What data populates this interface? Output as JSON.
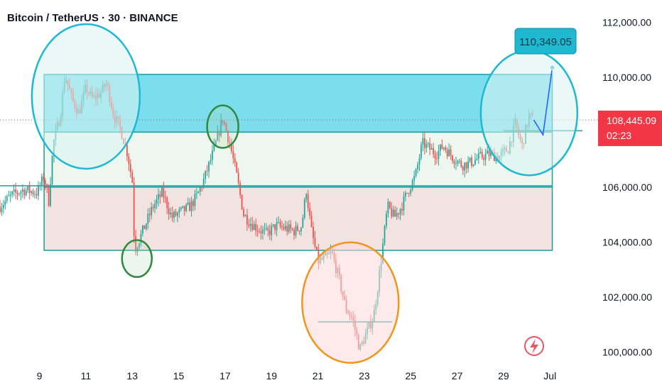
{
  "header": {
    "title": "Bitcoin / TetherUS · 30 · BINANCE"
  },
  "colors": {
    "up": "#26a69a",
    "down": "#ef5350",
    "resistance_zone": "#4fd3e8",
    "range_zone": "#eef7ef",
    "support_zone": "#f3e3e0",
    "circle_cyan": "#1fb8d0",
    "circle_green": "#2e8b3e",
    "circle_orange": "#f0961e",
    "projection": "#2962ff",
    "price_badge": "#f23645",
    "target_badge": "#1fb8d0"
  },
  "chart_data": {
    "type": "candlestick",
    "title": "Bitcoin / TetherUS · 30 · BINANCE",
    "x_tick_labels": [
      "9",
      "11",
      "13",
      "15",
      "17",
      "19",
      "21",
      "23",
      "25",
      "27",
      "29",
      "Jul"
    ],
    "x_ticks": [
      9,
      11,
      13,
      15,
      17,
      19,
      21,
      23,
      25,
      27,
      29,
      31
    ],
    "y_tick_values": [
      100000,
      102000,
      104000,
      106000,
      108000,
      110000,
      112000
    ],
    "y_tick_labels": [
      "100,000.00",
      "102,000.00",
      "104,000.00",
      "106,000.00",
      "108,000.00",
      "110,000.00",
      "112,000.00"
    ],
    "ylim": [
      99600,
      112600
    ],
    "xlim": [
      7.3,
      32.4
    ],
    "price_path": [
      {
        "x": 7.3,
        "y": 105300
      },
      {
        "x": 7.8,
        "y": 105700
      },
      {
        "x": 8.3,
        "y": 105900
      },
      {
        "x": 8.9,
        "y": 105800
      },
      {
        "x": 9.2,
        "y": 106400
      },
      {
        "x": 9.4,
        "y": 105500
      },
      {
        "x": 9.6,
        "y": 107600
      },
      {
        "x": 9.9,
        "y": 108600
      },
      {
        "x": 10.1,
        "y": 110100
      },
      {
        "x": 10.4,
        "y": 109200
      },
      {
        "x": 10.7,
        "y": 108700
      },
      {
        "x": 11.0,
        "y": 109600
      },
      {
        "x": 11.3,
        "y": 109200
      },
      {
        "x": 11.6,
        "y": 109400
      },
      {
        "x": 11.9,
        "y": 109800
      },
      {
        "x": 12.2,
        "y": 108600
      },
      {
        "x": 12.5,
        "y": 108100
      },
      {
        "x": 12.8,
        "y": 107200
      },
      {
        "x": 13.0,
        "y": 106200
      },
      {
        "x": 13.1,
        "y": 103700
      },
      {
        "x": 13.3,
        "y": 104100
      },
      {
        "x": 13.6,
        "y": 104700
      },
      {
        "x": 13.9,
        "y": 105300
      },
      {
        "x": 14.3,
        "y": 105800
      },
      {
        "x": 14.7,
        "y": 104900
      },
      {
        "x": 15.1,
        "y": 105100
      },
      {
        "x": 15.5,
        "y": 105300
      },
      {
        "x": 15.8,
        "y": 105700
      },
      {
        "x": 16.1,
        "y": 106300
      },
      {
        "x": 16.5,
        "y": 107300
      },
      {
        "x": 16.9,
        "y": 108500
      },
      {
        "x": 17.2,
        "y": 107600
      },
      {
        "x": 17.5,
        "y": 106400
      },
      {
        "x": 17.8,
        "y": 105000
      },
      {
        "x": 18.1,
        "y": 104700
      },
      {
        "x": 18.4,
        "y": 104500
      },
      {
        "x": 18.8,
        "y": 104300
      },
      {
        "x": 19.2,
        "y": 104600
      },
      {
        "x": 19.6,
        "y": 104500
      },
      {
        "x": 20.0,
        "y": 104400
      },
      {
        "x": 20.3,
        "y": 104600
      },
      {
        "x": 20.5,
        "y": 105900
      },
      {
        "x": 20.7,
        "y": 104500
      },
      {
        "x": 21.0,
        "y": 103300
      },
      {
        "x": 21.3,
        "y": 103400
      },
      {
        "x": 21.6,
        "y": 103600
      },
      {
        "x": 21.9,
        "y": 102700
      },
      {
        "x": 22.2,
        "y": 101600
      },
      {
        "x": 22.5,
        "y": 101200
      },
      {
        "x": 22.8,
        "y": 100100
      },
      {
        "x": 23.1,
        "y": 100700
      },
      {
        "x": 23.4,
        "y": 101300
      },
      {
        "x": 23.6,
        "y": 102500
      },
      {
        "x": 23.8,
        "y": 103900
      },
      {
        "x": 24.0,
        "y": 105300
      },
      {
        "x": 24.3,
        "y": 104900
      },
      {
        "x": 24.6,
        "y": 105300
      },
      {
        "x": 24.9,
        "y": 105900
      },
      {
        "x": 25.2,
        "y": 106400
      },
      {
        "x": 25.5,
        "y": 107600
      },
      {
        "x": 25.8,
        "y": 107400
      },
      {
        "x": 26.1,
        "y": 107200
      },
      {
        "x": 26.4,
        "y": 107500
      },
      {
        "x": 26.8,
        "y": 107100
      },
      {
        "x": 27.2,
        "y": 106800
      },
      {
        "x": 27.6,
        "y": 106900
      },
      {
        "x": 28.0,
        "y": 107100
      },
      {
        "x": 28.4,
        "y": 107200
      },
      {
        "x": 28.8,
        "y": 107100
      },
      {
        "x": 29.2,
        "y": 107400
      },
      {
        "x": 29.5,
        "y": 108300
      },
      {
        "x": 29.8,
        "y": 107500
      },
      {
        "x": 30.1,
        "y": 108600
      },
      {
        "x": 30.3,
        "y": 108445
      }
    ],
    "projection": [
      {
        "x": 30.3,
        "y": 108445
      },
      {
        "x": 30.7,
        "y": 107900
      },
      {
        "x": 31.1,
        "y": 110349
      }
    ],
    "zones": [
      {
        "name": "resistance",
        "x0": 9.2,
        "x1": 31.1,
        "y0": 108000,
        "y1": 110100
      },
      {
        "name": "range",
        "x0": 9.2,
        "x1": 31.1,
        "y0": 106000,
        "y1": 108000
      },
      {
        "name": "support",
        "x0": 9.2,
        "x1": 31.1,
        "y0": 103700,
        "y1": 106000
      }
    ],
    "levels": [
      {
        "name": "level-106000",
        "y": 106050,
        "x0": 7.3,
        "x1": 31.1
      },
      {
        "name": "level-108000",
        "y": 108050,
        "x0": 29.0,
        "x1": 32.4
      },
      {
        "name": "level-101100",
        "y": 101100,
        "x0": 21.0,
        "x1": 24.2
      }
    ],
    "circles": [
      {
        "name": "circle-cyan-left",
        "x": 11.0,
        "y": 109300,
        "color": "cyan",
        "filled": true
      },
      {
        "name": "circle-green-13",
        "x": 13.2,
        "y": 103400,
        "color": "green",
        "filled": false
      },
      {
        "name": "circle-green-17",
        "x": 16.9,
        "y": 108200,
        "color": "green",
        "filled": false
      },
      {
        "name": "circle-orange-22",
        "x": 22.4,
        "y": 101800,
        "color": "orange",
        "filled": true
      },
      {
        "name": "circle-cyan-right",
        "x": 30.1,
        "y": 108700,
        "color": "cyan",
        "filled": true
      }
    ],
    "current_price": 108445.09,
    "current_price_label": "108,445.09",
    "countdown_label": "02:23",
    "target_price": 110349.05,
    "target_label": "110,349.05"
  }
}
